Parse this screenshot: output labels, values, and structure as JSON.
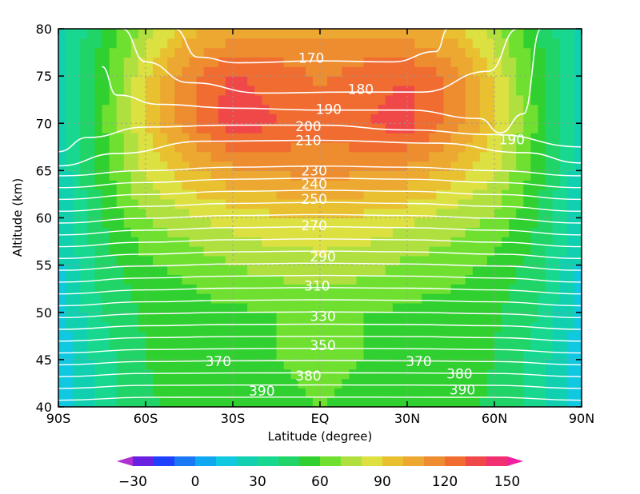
{
  "chart_data": {
    "type": "heatmap",
    "title": "",
    "xlabel": "Latitude (degree)",
    "ylabel": "Altitude (km)",
    "xlim": [
      -90,
      90
    ],
    "ylim": [
      40,
      80
    ],
    "grid": true,
    "x_ticks": [
      {
        "value": -90,
        "label": "90S"
      },
      {
        "value": -60,
        "label": "60S"
      },
      {
        "value": -30,
        "label": "30S"
      },
      {
        "value": 0,
        "label": "EQ"
      },
      {
        "value": 30,
        "label": "30N"
      },
      {
        "value": 60,
        "label": "60N"
      },
      {
        "value": 90,
        "label": "90N"
      }
    ],
    "y_ticks": [
      {
        "value": 40,
        "label": "40"
      },
      {
        "value": 45,
        "label": "45"
      },
      {
        "value": 50,
        "label": "50"
      },
      {
        "value": 55,
        "label": "55"
      },
      {
        "value": 60,
        "label": "60"
      },
      {
        "value": 65,
        "label": "65"
      },
      {
        "value": 70,
        "label": "70"
      },
      {
        "value": 75,
        "label": "75"
      },
      {
        "value": 80,
        "label": "80"
      }
    ],
    "colorbar": {
      "levels": [
        -40,
        -30,
        -20,
        -10,
        0,
        10,
        20,
        30,
        40,
        50,
        60,
        70,
        80,
        90,
        100,
        110,
        120,
        130,
        140,
        150,
        160
      ],
      "colors": [
        "#b030d0",
        "#6a20e0",
        "#2040ff",
        "#1a78f5",
        "#10a8f0",
        "#10c8e0",
        "#10d0b0",
        "#18d890",
        "#20d468",
        "#30d030",
        "#70e030",
        "#b0e040",
        "#dce040",
        "#e8c030",
        "#eca830",
        "#ee8c30",
        "#f06c30",
        "#f04848",
        "#f03070",
        "#f020a0"
      ],
      "tick_labels": [
        {
          "value": -30,
          "label": "−30"
        },
        {
          "value": 0,
          "label": "0"
        },
        {
          "value": 30,
          "label": "30"
        },
        {
          "value": 60,
          "label": "60"
        },
        {
          "value": 90,
          "label": "90"
        },
        {
          "value": 120,
          "label": "120"
        },
        {
          "value": 150,
          "label": "150"
        }
      ]
    },
    "shaded_field": {
      "description_free": true,
      "lat_grid": [
        -90,
        -75,
        -60,
        -45,
        -30,
        -15,
        0,
        15,
        30,
        45,
        60,
        75,
        90
      ],
      "alt_grid": [
        40,
        45,
        50,
        55,
        60,
        65,
        70,
        75,
        80
      ],
      "values": [
        [
          10,
          35,
          48,
          54,
          57,
          59,
          60,
          59,
          57,
          54,
          48,
          35,
          10
        ],
        [
          12,
          36,
          50,
          55,
          57,
          60,
          61,
          60,
          57,
          55,
          50,
          36,
          12
        ],
        [
          15,
          40,
          52,
          56,
          58,
          60,
          60,
          60,
          58,
          56,
          52,
          40,
          15
        ],
        [
          18,
          45,
          58,
          63,
          70,
          74,
          76,
          74,
          68,
          64,
          58,
          45,
          18
        ],
        [
          20,
          50,
          70,
          78,
          84,
          88,
          90,
          88,
          82,
          76,
          68,
          50,
          20
        ],
        [
          22,
          55,
          82,
          98,
          108,
          112,
          113,
          112,
          108,
          97,
          82,
          55,
          22
        ],
        [
          25,
          58,
          90,
          118,
          136,
          130,
          124,
          130,
          134,
          118,
          90,
          58,
          25
        ],
        [
          26,
          56,
          88,
          118,
          132,
          126,
          118,
          125,
          130,
          118,
          88,
          56,
          26
        ],
        [
          24,
          50,
          75,
          96,
          104,
          108,
          108,
          108,
          104,
          96,
          75,
          50,
          24
        ]
      ]
    },
    "contours": {
      "levels": [
        170,
        180,
        190,
        200,
        210,
        230,
        240,
        250,
        270,
        290,
        310,
        330,
        350,
        370,
        380,
        390
      ],
      "labels": [
        {
          "text": "170",
          "lat": -3,
          "alt": 76.9
        },
        {
          "text": "180",
          "lat": 14,
          "alt": 73.6
        },
        {
          "text": "190",
          "lat": 3,
          "alt": 71.5
        },
        {
          "text": "190",
          "lat": 66,
          "alt": 68.3
        },
        {
          "text": "200",
          "lat": -4,
          "alt": 69.7
        },
        {
          "text": "210",
          "lat": -4,
          "alt": 68.2
        },
        {
          "text": "230",
          "lat": -2,
          "alt": 65.0
        },
        {
          "text": "240",
          "lat": -2,
          "alt": 63.6
        },
        {
          "text": "250",
          "lat": -2,
          "alt": 62.0
        },
        {
          "text": "270",
          "lat": -2,
          "alt": 59.2
        },
        {
          "text": "290",
          "lat": 1,
          "alt": 55.9
        },
        {
          "text": "310",
          "lat": -1,
          "alt": 52.8
        },
        {
          "text": "330",
          "lat": 1,
          "alt": 49.6
        },
        {
          "text": "350",
          "lat": 1,
          "alt": 46.5
        },
        {
          "text": "370",
          "lat": -35,
          "alt": 44.8
        },
        {
          "text": "370",
          "lat": 34,
          "alt": 44.8
        },
        {
          "text": "380",
          "lat": -4,
          "alt": 43.3
        },
        {
          "text": "380",
          "lat": 48,
          "alt": 43.5
        },
        {
          "text": "390",
          "lat": -20,
          "alt": 41.7
        },
        {
          "text": "390",
          "lat": 49,
          "alt": 41.8
        }
      ]
    }
  }
}
